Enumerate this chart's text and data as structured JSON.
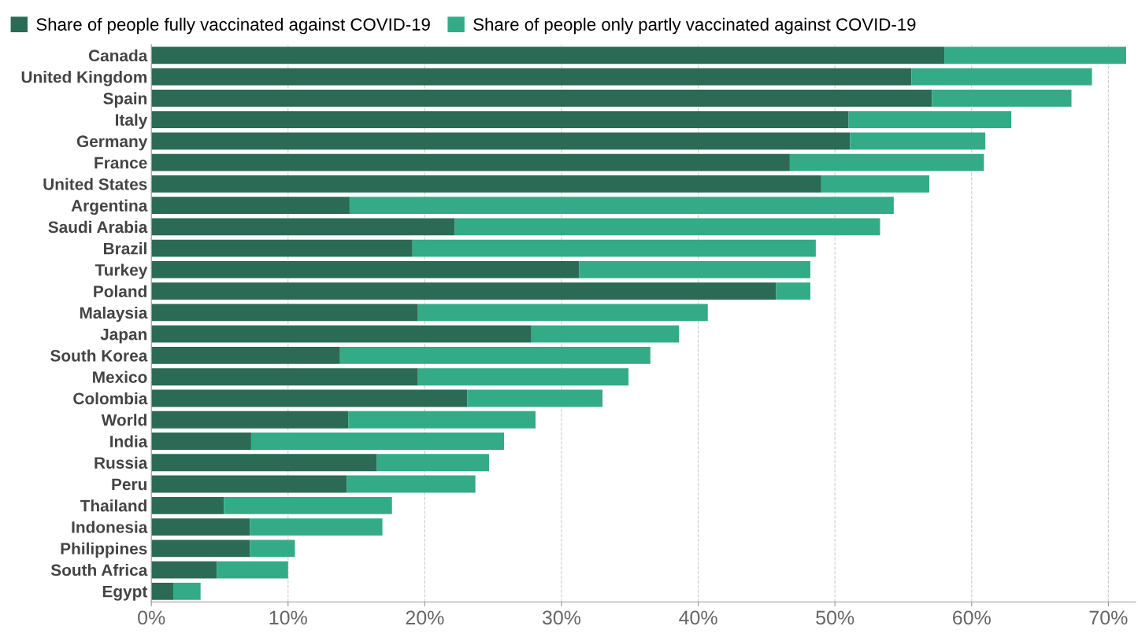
{
  "chart_data": {
    "type": "bar",
    "orientation": "horizontal",
    "stacked": true,
    "categories": [
      "Canada",
      "United Kingdom",
      "Spain",
      "Italy",
      "Germany",
      "France",
      "United States",
      "Argentina",
      "Saudi Arabia",
      "Brazil",
      "Turkey",
      "Poland",
      "Malaysia",
      "Japan",
      "South Korea",
      "Mexico",
      "Colombia",
      "World",
      "India",
      "Russia",
      "Peru",
      "Thailand",
      "Indonesia",
      "Philippines",
      "South Africa",
      "Egypt"
    ],
    "series": [
      {
        "name": "Share of people fully vaccinated against COVID-19",
        "color": "#2b6a54",
        "values": [
          58.0,
          55.6,
          57.1,
          51.0,
          51.1,
          46.7,
          49.0,
          14.5,
          22.2,
          19.1,
          31.3,
          45.7,
          19.5,
          27.8,
          13.8,
          19.5,
          23.1,
          14.4,
          7.3,
          16.5,
          14.3,
          5.3,
          7.2,
          7.2,
          4.8,
          1.6
        ]
      },
      {
        "name": "Share of people only partly vaccinated against COVID-19",
        "color": "#33ab86",
        "values": [
          13.3,
          13.2,
          10.2,
          11.9,
          9.9,
          14.2,
          7.9,
          39.8,
          31.1,
          29.5,
          16.9,
          2.5,
          21.2,
          10.8,
          22.7,
          15.4,
          9.9,
          13.7,
          18.5,
          8.2,
          9.4,
          12.3,
          9.7,
          3.3,
          5.2,
          2.0
        ]
      }
    ],
    "xlim": [
      0,
      72
    ],
    "xticks": [
      {
        "value": 0,
        "label": "0%"
      },
      {
        "value": 10,
        "label": "10%"
      },
      {
        "value": 20,
        "label": "20%"
      },
      {
        "value": 30,
        "label": "30%"
      },
      {
        "value": 40,
        "label": "40%"
      },
      {
        "value": 50,
        "label": "50%"
      },
      {
        "value": 60,
        "label": "60%"
      },
      {
        "value": 70,
        "label": "70%"
      }
    ],
    "grid": "x",
    "legend": "top left"
  }
}
